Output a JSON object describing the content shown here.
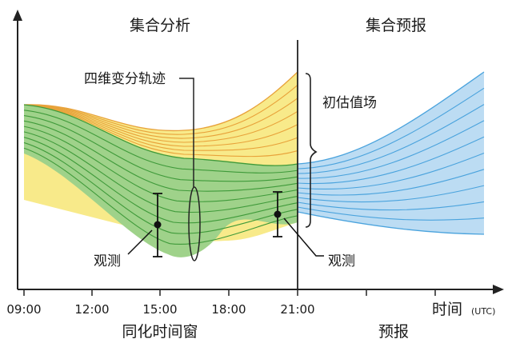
{
  "section_labels": {
    "analysis": "集合分析",
    "forecast": "集合预报"
  },
  "annotations": {
    "four_dvar_trajectory": "四维变分轨迹",
    "initial_ensemble": "初估值场",
    "observation_1": "观测",
    "observation_2": "观测"
  },
  "x_axis": {
    "ticks": [
      "09:00",
      "12:00",
      "15:00",
      "18:00",
      "21:00"
    ],
    "label": "时间",
    "unit": "(UTC)"
  },
  "bottom_labels": {
    "assimilation_window": "同化时间窗",
    "forecast": "预报"
  },
  "colors": {
    "yellow_fill": "#f8ea8a",
    "yellow_line": "#e8a23a",
    "green_fill": "#9fd28a",
    "green_line": "#3f9a3a",
    "blue_fill": "#bcdcf3",
    "blue_line": "#4aa3dd",
    "axis": "#222222"
  }
}
